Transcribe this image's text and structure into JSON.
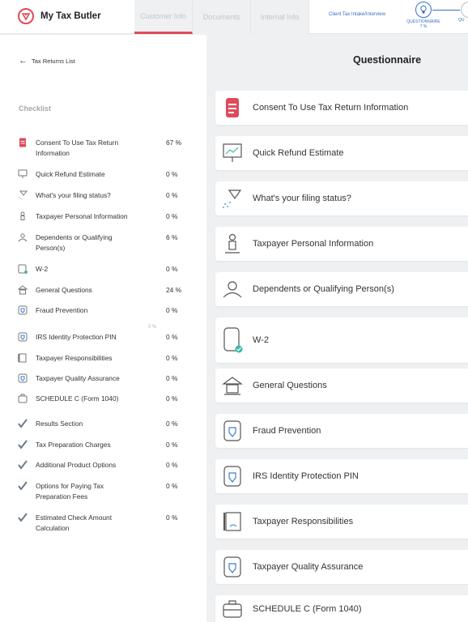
{
  "app": {
    "name": "My Tax Butler"
  },
  "tabs": [
    {
      "label": "Customer Info",
      "active": true
    },
    {
      "label": "Documents",
      "active": false
    },
    {
      "label": "Internal Info",
      "active": false
    }
  ],
  "header": {
    "link": "Client Tax Intake/Interview",
    "step1_label": "QUESTIONNAIRE",
    "step1_pct": "7 %",
    "step2_label": "QU"
  },
  "nav": {
    "back_label": "Tax Returns List"
  },
  "checklist": {
    "title": "Checklist",
    "items": [
      {
        "label": "Consent To Use Tax Return Information",
        "pct": "67 %",
        "icon": "document-icon"
      },
      {
        "label": "Quick Refund Estimate",
        "pct": "0 %",
        "icon": "presentation-icon"
      },
      {
        "label": "What's your filing status?",
        "pct": "0 %",
        "icon": "filter-icon"
      },
      {
        "label": "Taxpayer Personal Information",
        "pct": "0 %",
        "icon": "person-icon"
      },
      {
        "label": "Dependents or Qualifying Person(s)",
        "pct": "6 %",
        "icon": "group-icon"
      },
      {
        "label": "W-2",
        "pct": "0 %",
        "icon": "form-icon"
      },
      {
        "label": "General Questions",
        "pct": "24 %",
        "icon": "building-icon"
      },
      {
        "label": "Fraud Prevention",
        "pct": "0 %",
        "icon": "shield-icon"
      },
      {
        "label": "IRS Identity Protection PIN",
        "pct": "0 %",
        "icon": "shield-icon"
      },
      {
        "label": "Taxpayer Responsibilities",
        "pct": "0 %",
        "icon": "scroll-icon"
      },
      {
        "label": "Taxpayer Quality Assurance",
        "pct": "0 %",
        "icon": "shield-icon"
      },
      {
        "label": "SCHEDULE C (Form 1040)",
        "pct": "0 %",
        "icon": "briefcase-icon"
      },
      {
        "label": "Results Section",
        "pct": "0 %",
        "icon": "checkmark-icon"
      },
      {
        "label": "Tax Preparation Charges",
        "pct": "0 %",
        "icon": "checkmark-icon"
      },
      {
        "label": "Additional Product Options",
        "pct": "0 %",
        "icon": "checkmark-icon"
      },
      {
        "label": "Options for Paying Tax Preparation Fees",
        "pct": "0 %",
        "icon": "checkmark-icon"
      },
      {
        "label": "Estimated Check Amount Calculation",
        "pct": "0 %",
        "icon": "checkmark-icon"
      }
    ],
    "faded_pct": "0 %"
  },
  "questionnaire": {
    "title": "Questionnaire",
    "cards": [
      {
        "label": "Consent To Use Tax Return Information",
        "icon": "document-icon"
      },
      {
        "label": "Quick Refund Estimate",
        "icon": "presentation-icon"
      },
      {
        "label": "What's your filing status?",
        "icon": "filter-icon"
      },
      {
        "label": "Taxpayer Personal Information",
        "icon": "person-icon"
      },
      {
        "label": "Dependents or Qualifying Person(s)",
        "icon": "group-icon"
      },
      {
        "label": "W-2",
        "icon": "form-icon"
      },
      {
        "label": "General Questions",
        "icon": "building-icon"
      },
      {
        "label": "Fraud Prevention",
        "icon": "shield-icon"
      },
      {
        "label": "IRS Identity Protection PIN",
        "icon": "shield-icon"
      },
      {
        "label": "Taxpayer Responsibilities",
        "icon": "scroll-icon"
      },
      {
        "label": "Taxpayer Quality Assurance",
        "icon": "shield-icon"
      },
      {
        "label": "SCHEDULE C (Form 1040)",
        "icon": "briefcase-icon"
      }
    ]
  },
  "colors": {
    "accent": "#e04a5a",
    "link": "#3a6fc4",
    "check": "#6b7a8c"
  }
}
